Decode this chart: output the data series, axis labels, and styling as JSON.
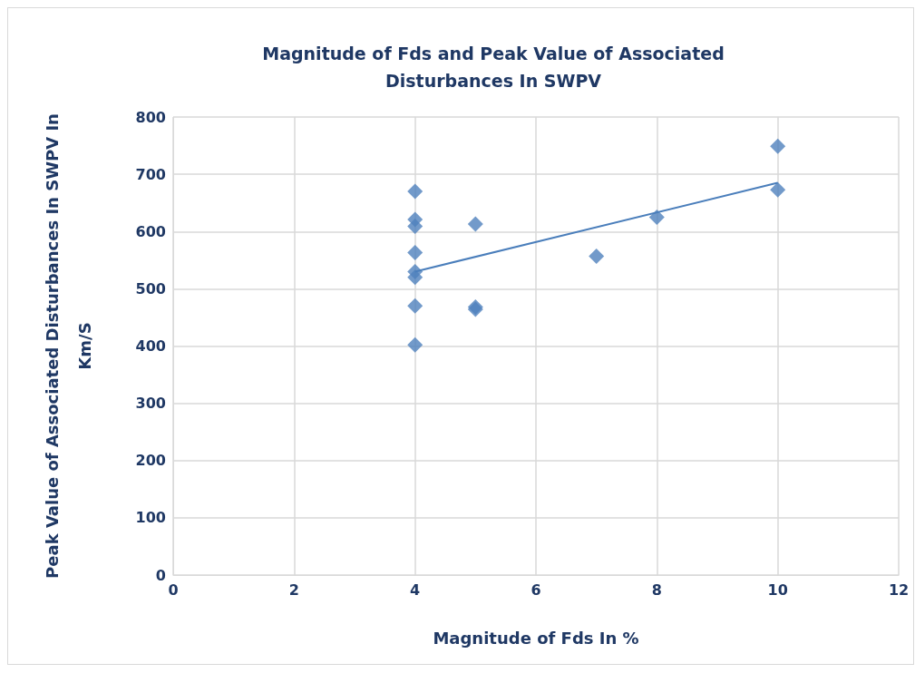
{
  "chart_data": {
    "type": "scatter",
    "title": "Magnitude of Fds and Peak Value of Associated\nDisturbances In SWPV",
    "xlabel": "Magnitude of Fds In %",
    "ylabel": "Peak Value of Associated Disturbances In SWPV In\nKm/S",
    "series": [
      {
        "color": "#4f81bd",
        "x": [
          4,
          4,
          4,
          4,
          4,
          4,
          4,
          4,
          5,
          5,
          5,
          7,
          8,
          10,
          10
        ],
        "values": [
          670,
          621,
          609,
          563,
          530,
          520,
          470,
          402,
          613,
          468,
          464,
          557,
          625,
          749,
          673
        ]
      },
      {
        "type": "line",
        "marker": "none",
        "color": "#4a7ebb",
        "x": [
          4,
          10
        ],
        "values": [
          530,
          685
        ]
      }
    ],
    "marker": "diamond",
    "grid": true,
    "xlim": [
      0,
      12
    ],
    "xticks": [
      0,
      2,
      4,
      6,
      8,
      10,
      12
    ],
    "ylim": [
      0,
      800
    ],
    "yticks": [
      0,
      100,
      200,
      300,
      400,
      500,
      600,
      700,
      800
    ]
  }
}
